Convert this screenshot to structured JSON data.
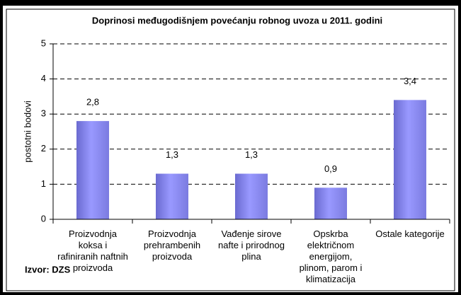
{
  "chart_data": {
    "type": "bar",
    "title": "Doprinosi međugodišnjem povećanju robnog uvoza u 2011. godini",
    "y_label": "postotni bodovi",
    "source": "Izvor: DZS",
    "categories": [
      "Proizvodnja koksa i rafiniranih naftnih proizvoda",
      "Proizvodnja prehrambenih proizvoda",
      "Vađenje sirove nafte i prirodnog plina",
      "Opskrba električnom energijom, plinom, parom i klimatizacija",
      "Ostale kategorije"
    ],
    "values": [
      2.8,
      1.3,
      1.3,
      0.9,
      3.4
    ],
    "value_labels": [
      "2,8",
      "1,3",
      "1,3",
      "0,9",
      "3,4"
    ],
    "color": "#9999ff",
    "ylim": [
      0,
      5
    ],
    "yticks": [
      0,
      1,
      2,
      3,
      4,
      5
    ],
    "grid": true
  }
}
